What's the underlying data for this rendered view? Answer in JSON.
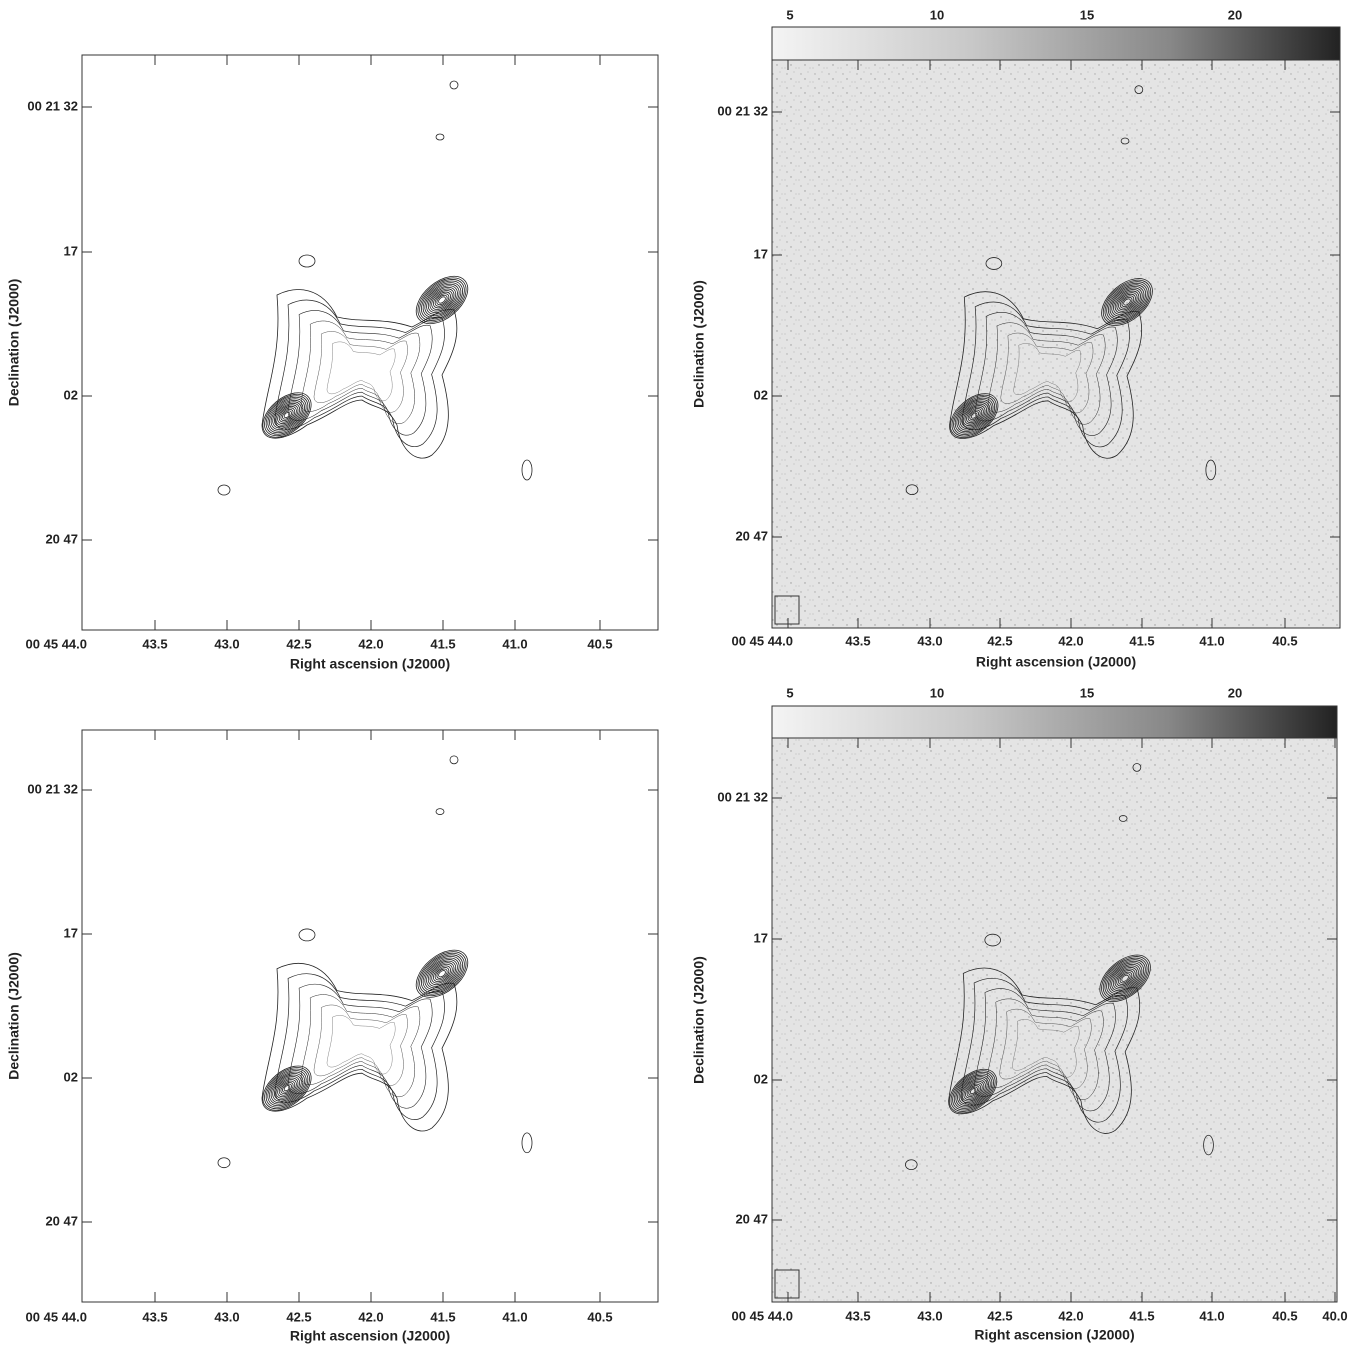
{
  "panels": [
    {
      "x_axis_label": "Right ascension (J2000)",
      "y_axis_label": "Declination (J2000)",
      "x_tick_labels": [
        "00 45 44.0",
        "43.5",
        "43.0",
        "42.5",
        "42.0",
        "41.5",
        "41.0",
        "40.5"
      ],
      "y_tick_labels": [
        "00 21 32",
        "17",
        "02",
        "20 47"
      ]
    },
    {
      "x_axis_label": "Right ascension (J2000)",
      "y_axis_label": "Declination (J2000)",
      "x_tick_labels": [
        "00 45 44.0",
        "43.5",
        "43.0",
        "42.5",
        "42.0",
        "41.5",
        "41.0",
        "40.5"
      ],
      "y_tick_labels": [
        "00 21 32",
        "17",
        "02",
        "20 47"
      ],
      "colorbar_tick_labels": [
        "5",
        "10",
        "15",
        "20"
      ]
    },
    {
      "x_axis_label": "Right ascension (J2000)",
      "y_axis_label": "Declination (J2000)",
      "x_tick_labels": [
        "00 45 44.0",
        "43.5",
        "43.0",
        "42.5",
        "42.0",
        "41.5",
        "41.0",
        "40.5"
      ],
      "y_tick_labels": [
        "00 21 32",
        "17",
        "02",
        "20 47"
      ]
    },
    {
      "x_axis_label": "Right ascension (J2000)",
      "y_axis_label": "Declination (J2000)",
      "x_tick_labels": [
        "00 45 44.0",
        "43.5",
        "43.0",
        "42.5",
        "42.0",
        "41.5",
        "41.0",
        "40.5",
        "40.0"
      ],
      "y_tick_labels": [
        "00 21 32",
        "17",
        "02",
        "20 47"
      ],
      "colorbar_tick_labels": [
        "5",
        "10",
        "15",
        "20"
      ]
    }
  ]
}
